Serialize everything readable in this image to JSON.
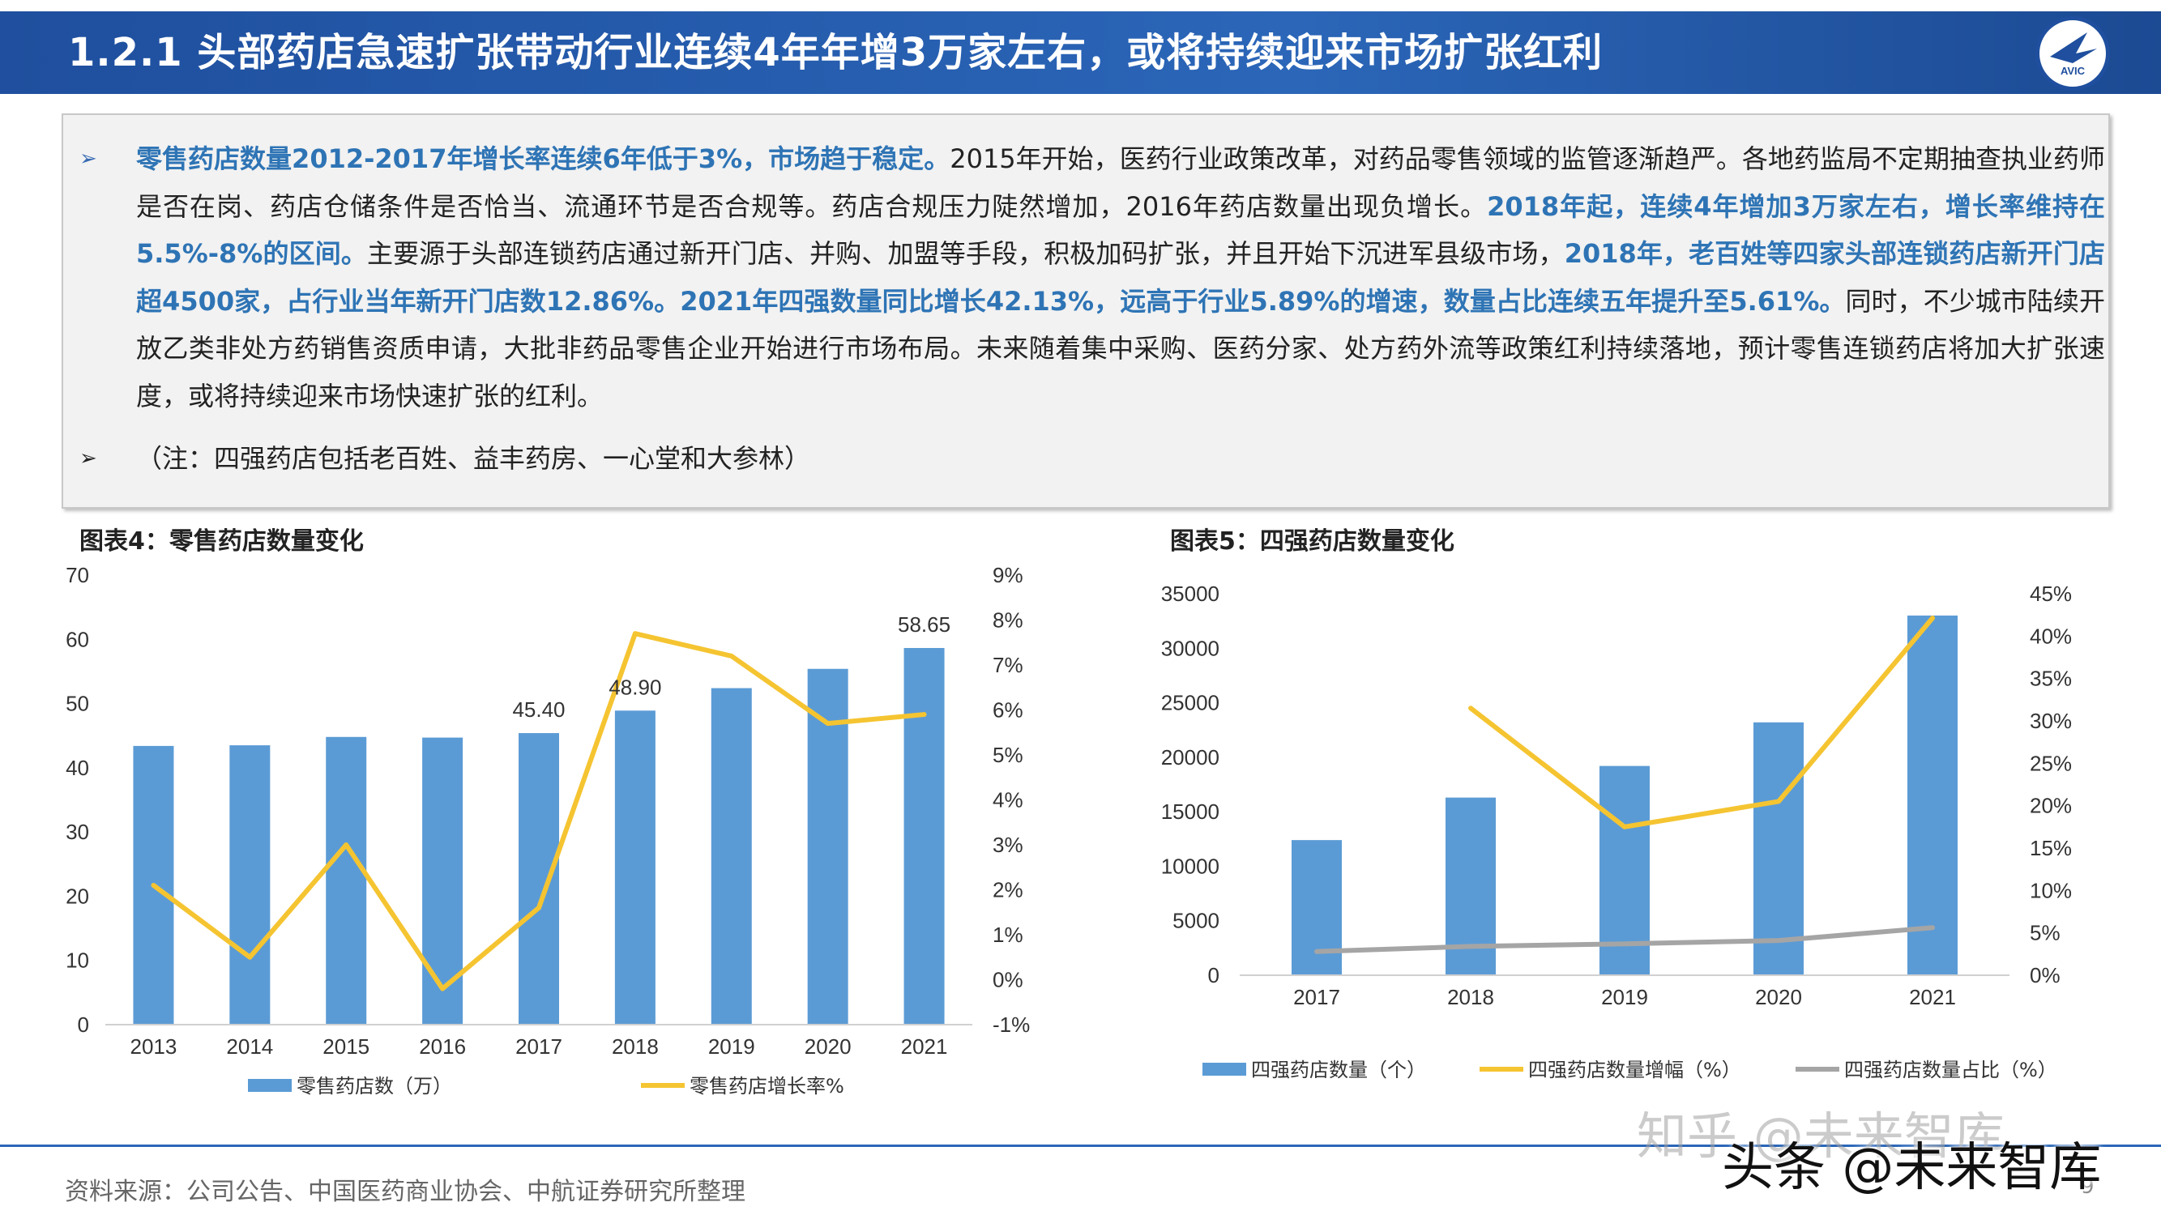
{
  "header": {
    "title": "1.2.1  头部药店急速扩张带动行业连续4年年增3万家左右，或将持续迎来市场扩张红利",
    "logo_text": "AVIC",
    "bg_color": "#1f4f9e"
  },
  "summary": {
    "bullet_icon": "arrow-right-icon",
    "segments": [
      {
        "text": "零售药店数量2012-2017年增长率连续6年低于3%，市场趋于稳定。",
        "highlight": true
      },
      {
        "text": "2015年开始，医药行业政策改革，对药品零售领域的监管逐渐趋严。各地药监局不定期抽查执业药师是否在岗、药店仓储条件是否恰当、流通环节是否合规等。药店合规压力陡然增加，2016年药店数量出现负增长。",
        "highlight": false
      },
      {
        "text": "2018年起，连续4年增加3万家左右，增长率维持在5.5%-8%的区间。",
        "highlight": true
      },
      {
        "text": "主要源于头部连锁药店通过新开门店、并购、加盟等手段，积极加码扩张，并且开始下沉进军县级市场，",
        "highlight": false
      },
      {
        "text": "2018年，老百姓等四家头部连锁药店新开门店超4500家，占行业当年新开门店数12.86%。2021年四强数量同比增长42.13%，远高于行业5.89%的增速，数量占比连续五年提升至5.61%。",
        "highlight": true
      },
      {
        "text": "同时，不少城市陆续开放乙类非处方药销售资质申请，大批非药品零售企业开始进行市场布局。未来随着集中采购、医药分家、处方药外流等政策红利持续落地，预计零售连锁药店将加大扩张速度，或将持续迎来市场快速扩张的红利。",
        "highlight": false
      }
    ],
    "note": "（注：四强药店包括老百姓、益丰药房、一心堂和大参林）",
    "highlight_color": "#2e74b5"
  },
  "chart_data": [
    {
      "type": "bar",
      "title": "图表4：零售药店数量变化",
      "categories": [
        "2013",
        "2014",
        "2015",
        "2016",
        "2017",
        "2018",
        "2019",
        "2020",
        "2021"
      ],
      "series": [
        {
          "name": "零售药店数（万）",
          "type": "bar",
          "axis": "left",
          "color": "#5b9bd5",
          "values": [
            43.4,
            43.5,
            44.8,
            44.7,
            45.4,
            48.9,
            52.4,
            55.4,
            58.65
          ]
        },
        {
          "name": "零售药店增长率%",
          "type": "line",
          "axis": "right",
          "color": "#f5c431",
          "values": [
            2.1,
            0.5,
            3.0,
            -0.2,
            1.6,
            7.7,
            7.2,
            5.7,
            5.9
          ]
        }
      ],
      "data_labels": [
        {
          "category": "2017",
          "text": "45.40"
        },
        {
          "category": "2018",
          "text": "48.90"
        },
        {
          "category": "2021",
          "text": "58.65"
        }
      ],
      "y_left": {
        "min": 0,
        "max": 70,
        "step": 10,
        "ticks": [
          "0",
          "10",
          "20",
          "30",
          "40",
          "50",
          "60",
          "70"
        ]
      },
      "y_right": {
        "min": -1,
        "max": 9,
        "step": 1,
        "ticks": [
          "-1%",
          "0%",
          "1%",
          "2%",
          "3%",
          "4%",
          "5%",
          "6%",
          "7%",
          "8%",
          "9%"
        ]
      },
      "grid": false,
      "legend_position": "bottom"
    },
    {
      "type": "bar",
      "title": "图表5：四强药店数量变化",
      "categories": [
        "2017",
        "2018",
        "2019",
        "2020",
        "2021"
      ],
      "series": [
        {
          "name": "四强药店数量（个）",
          "type": "bar",
          "axis": "left",
          "color": "#5b9bd5",
          "values": [
            12400,
            16300,
            19200,
            23200,
            33000
          ]
        },
        {
          "name": "四强药店数量增幅（%）",
          "type": "line",
          "axis": "right",
          "color": "#f5c431",
          "values": [
            null,
            31.5,
            17.5,
            20.5,
            42.13
          ]
        },
        {
          "name": "四强药店数量占比（%）",
          "type": "line",
          "axis": "right",
          "color": "#a5a5a5",
          "values": [
            2.8,
            3.4,
            3.7,
            4.1,
            5.61
          ]
        }
      ],
      "y_left": {
        "min": 0,
        "max": 35000,
        "step": 5000,
        "ticks": [
          "0",
          "5000",
          "10000",
          "15000",
          "20000",
          "25000",
          "30000",
          "35000"
        ]
      },
      "y_right": {
        "min": 0,
        "max": 45,
        "step": 5,
        "ticks": [
          "0%",
          "5%",
          "10%",
          "15%",
          "20%",
          "25%",
          "30%",
          "35%",
          "40%",
          "45%"
        ]
      },
      "grid": false,
      "legend_position": "bottom"
    }
  ],
  "footer": {
    "source": "资料来源：公司公告、中国医药商业协会、中航证券研究所整理",
    "page_number": "9",
    "watermark_1": "知乎 @未来智库",
    "watermark_2": "头条 @未来智库"
  }
}
